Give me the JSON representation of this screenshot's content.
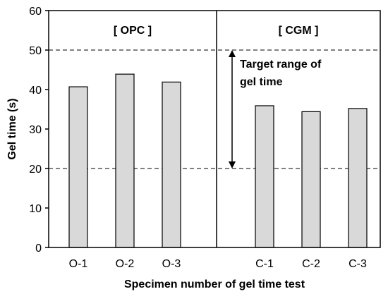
{
  "chart_data": {
    "type": "bar",
    "xlabel": "Specimen number of gel time test",
    "ylabel": "Gel time (s)",
    "ylim": [
      0,
      60
    ],
    "yticks": [
      0,
      10,
      20,
      30,
      40,
      50,
      60
    ],
    "grid": false,
    "panels": [
      {
        "label": "[ OPC ]",
        "categories": [
          "O-1",
          "O-2",
          "O-3"
        ],
        "values": [
          40.7,
          43.9,
          41.9
        ]
      },
      {
        "label": "[ CGM ]",
        "categories": [
          "C-1",
          "C-2",
          "C-3"
        ],
        "values": [
          35.9,
          34.4,
          35.2
        ]
      }
    ],
    "reference_lines": [
      20,
      50
    ],
    "annotation": {
      "lines": [
        "Target range of",
        "gel time"
      ],
      "range": [
        20,
        50
      ]
    },
    "colors": {
      "bar_fill": "#d9d9d9",
      "bar_stroke": "#000000",
      "reference_line": "#808080"
    }
  }
}
